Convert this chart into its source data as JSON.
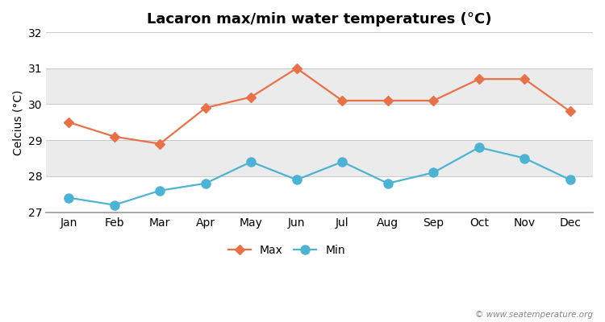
{
  "title": "Lacaron max/min water temperatures (°C)",
  "ylabel": "Celcius (°C)",
  "months": [
    "Jan",
    "Feb",
    "Mar",
    "Apr",
    "May",
    "Jun",
    "Jul",
    "Aug",
    "Sep",
    "Oct",
    "Nov",
    "Dec"
  ],
  "max_temps": [
    29.5,
    29.1,
    28.9,
    29.9,
    30.2,
    31.0,
    30.1,
    30.1,
    30.1,
    30.7,
    30.7,
    29.8
  ],
  "min_temps": [
    27.4,
    27.2,
    27.6,
    27.8,
    28.4,
    27.9,
    28.4,
    27.8,
    28.1,
    28.8,
    28.5,
    27.9
  ],
  "max_color": "#e8714a",
  "min_color": "#4db3d4",
  "ylim": [
    27.0,
    32.0
  ],
  "yticks": [
    27,
    28,
    29,
    30,
    31,
    32
  ],
  "band_colors": [
    "#ffffff",
    "#ebebeb",
    "#ffffff",
    "#ebebeb",
    "#ffffff"
  ],
  "fig_bg_color": "#ffffff",
  "plot_bg_color": "#ffffff",
  "watermark": "© www.seatemperature.org",
  "legend_max": "Max",
  "legend_min": "Min",
  "marker_style_max": "D",
  "marker_style_min": "o",
  "marker_size_max": 6,
  "marker_size_min": 8,
  "line_width": 1.6,
  "title_fontsize": 13,
  "label_fontsize": 10,
  "tick_fontsize": 10,
  "grid_color": "#cccccc",
  "bottom_spine_color": "#999999"
}
